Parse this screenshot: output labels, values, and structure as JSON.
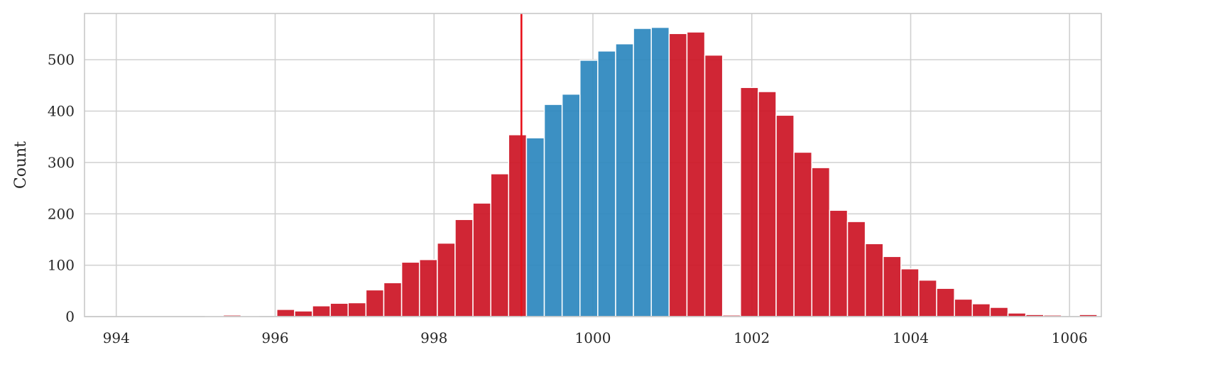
{
  "chart_data": {
    "type": "bar",
    "subtype": "histogram",
    "title": "",
    "xlabel": "",
    "ylabel": "Count",
    "xlim": [
      993.6,
      1006.4
    ],
    "ylim": [
      0,
      590
    ],
    "grid": true,
    "x_ticks": [
      994,
      996,
      998,
      1000,
      1002,
      1004,
      1006
    ],
    "y_ticks": [
      0,
      100,
      200,
      300,
      400,
      500
    ],
    "bin_start": 994.0,
    "bin_width": 0.2245,
    "counts": [
      0,
      0,
      0,
      0,
      0,
      1,
      3,
      2,
      0,
      14,
      11,
      21,
      26,
      27,
      52,
      66,
      106,
      111,
      143,
      189,
      221,
      278,
      354,
      348,
      413,
      433,
      499,
      517,
      531,
      561,
      563,
      551,
      554,
      509,
      3,
      446,
      438,
      392,
      320,
      290,
      207,
      185,
      142,
      117,
      93,
      71,
      55,
      34,
      25,
      18,
      7,
      4,
      3,
      0,
      4,
      1,
      0,
      0,
      0
    ],
    "threshold_line": 999.1,
    "colors": {
      "outside": "#cc1424",
      "inside": "#2b87be",
      "line": "#e8121b",
      "grid": "#d0d0d0",
      "axis": "#c8c8c8"
    }
  }
}
